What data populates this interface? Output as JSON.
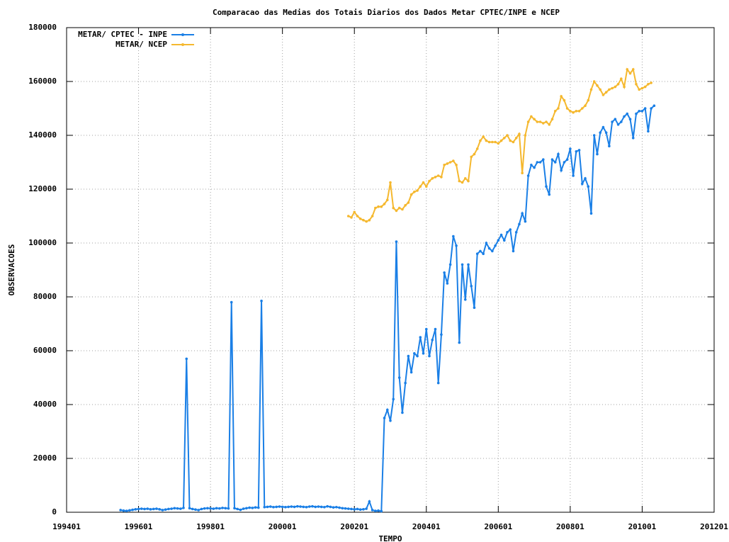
{
  "chart_data": {
    "type": "line",
    "title": "Comparacao das Medias dos Totais Diarios dos Dados Metar  CPTEC/INPE e NCEP",
    "xlabel": "TEMPO",
    "ylabel": "OBSERVACOES",
    "xlim": [
      "199401",
      "201201"
    ],
    "xticks": [
      "199401",
      "199601",
      "199801",
      "200001",
      "200201",
      "200401",
      "200601",
      "200801",
      "201001",
      "201201"
    ],
    "ylim": [
      0,
      180000
    ],
    "yticks": [
      0,
      20000,
      40000,
      60000,
      80000,
      100000,
      120000,
      140000,
      160000,
      180000
    ],
    "grid": true,
    "legend": "upper left",
    "x": [
      "199507",
      "199508",
      "199509",
      "199510",
      "199511",
      "199512",
      "199601",
      "199602",
      "199603",
      "199604",
      "199605",
      "199606",
      "199607",
      "199608",
      "199609",
      "199610",
      "199611",
      "199612",
      "199701",
      "199702",
      "199703",
      "199704",
      "199705",
      "199706",
      "199707",
      "199708",
      "199709",
      "199710",
      "199711",
      "199712",
      "199801",
      "199802",
      "199803",
      "199804",
      "199805",
      "199806",
      "199807",
      "199808",
      "199809",
      "199810",
      "199811",
      "199812",
      "199901",
      "199902",
      "199903",
      "199904",
      "199905",
      "199906",
      "199907",
      "199908",
      "199909",
      "199910",
      "199911",
      "199912",
      "200001",
      "200002",
      "200003",
      "200004",
      "200005",
      "200006",
      "200007",
      "200008",
      "200009",
      "200010",
      "200011",
      "200012",
      "200101",
      "200102",
      "200103",
      "200104",
      "200105",
      "200106",
      "200107",
      "200108",
      "200109",
      "200110",
      "200111",
      "200112",
      "200201",
      "200202",
      "200203",
      "200204",
      "200205",
      "200206",
      "200207",
      "200208",
      "200209",
      "200210",
      "200211",
      "200212",
      "200301",
      "200302",
      "200303",
      "200304",
      "200305",
      "200306",
      "200307",
      "200308",
      "200309",
      "200310",
      "200311",
      "200312",
      "200401",
      "200402",
      "200403",
      "200404",
      "200405",
      "200406",
      "200407",
      "200408",
      "200409",
      "200410",
      "200411",
      "200412",
      "200501",
      "200502",
      "200503",
      "200504",
      "200505",
      "200506",
      "200507",
      "200508",
      "200509",
      "200510",
      "200511",
      "200512",
      "200601",
      "200602",
      "200603",
      "200604",
      "200605",
      "200606",
      "200607",
      "200608",
      "200609",
      "200610",
      "200611",
      "200612",
      "200701",
      "200702",
      "200703",
      "200704",
      "200705",
      "200706",
      "200707",
      "200708",
      "200709",
      "200710",
      "200711",
      "200712",
      "200801",
      "200802",
      "200803",
      "200804",
      "200805",
      "200806",
      "200807",
      "200808",
      "200809",
      "200810",
      "200811",
      "200812",
      "200901",
      "200902",
      "200903",
      "200904",
      "200905",
      "200906",
      "200907",
      "200908",
      "200909",
      "200910",
      "200911",
      "200912",
      "201001",
      "201002",
      "201003",
      "201004",
      "201005"
    ],
    "series": [
      {
        "name": "METAR/ CPTEC - INPE",
        "color": "#1a7fe6",
        "values": [
          800,
          600,
          500,
          700,
          900,
          1100,
          1200,
          1300,
          1200,
          1300,
          1100,
          1200,
          1300,
          1100,
          800,
          1000,
          1200,
          1300,
          1500,
          1400,
          1300,
          1600,
          57000,
          1500,
          1200,
          1000,
          800,
          1200,
          1400,
          1500,
          1400,
          1300,
          1500,
          1400,
          1600,
          1500,
          1400,
          78000,
          1500,
          1200,
          900,
          1300,
          1500,
          1700,
          1600,
          1800,
          1700,
          78500,
          1900,
          2000,
          2100,
          1900,
          2000,
          2100,
          2000,
          1900,
          2000,
          2100,
          2000,
          2200,
          2100,
          2000,
          1900,
          2100,
          2200,
          2000,
          2100,
          2000,
          1900,
          2200,
          2000,
          1800,
          1900,
          1700,
          1500,
          1400,
          1300,
          1200,
          1100,
          1200,
          1000,
          1100,
          1300,
          4000,
          800,
          500,
          600,
          400,
          35000,
          38000,
          34000,
          42000,
          100500,
          50000,
          37000,
          48000,
          58000,
          52000,
          59000,
          58000,
          65000,
          59000,
          68000,
          58000,
          64000,
          68000,
          48000,
          66000,
          89000,
          85000,
          92000,
          102500,
          99000,
          63000,
          92000,
          79000,
          92000,
          84000,
          76000,
          96000,
          97000,
          96000,
          100000,
          98000,
          97000,
          99000,
          101000,
          103000,
          101000,
          104000,
          105000,
          97000,
          104000,
          107000,
          111000,
          108000,
          125000,
          129000,
          128000,
          130000,
          130000,
          131000,
          121000,
          118000,
          131000,
          130000,
          133000,
          127000,
          130000,
          131000,
          135000,
          125000,
          134000,
          134500,
          122000,
          124000,
          121000,
          111000,
          140000,
          133000,
          141000,
          143000,
          141000,
          136000,
          145000,
          146000,
          144000,
          145000,
          147000,
          148000,
          146000,
          139000,
          148000,
          149000,
          149000,
          150000,
          141500,
          150000,
          151000
        ]
      },
      {
        "name": "METAR/ NCEP",
        "color": "#f5b82e",
        "values": [
          null,
          null,
          null,
          null,
          null,
          null,
          null,
          null,
          null,
          null,
          null,
          null,
          null,
          null,
          null,
          null,
          null,
          null,
          null,
          null,
          null,
          null,
          null,
          null,
          null,
          null,
          null,
          null,
          null,
          null,
          null,
          null,
          null,
          null,
          null,
          null,
          null,
          null,
          null,
          null,
          null,
          null,
          null,
          null,
          null,
          null,
          null,
          null,
          null,
          null,
          null,
          null,
          null,
          null,
          null,
          null,
          null,
          null,
          null,
          null,
          null,
          null,
          null,
          null,
          null,
          null,
          null,
          null,
          null,
          null,
          null,
          null,
          null,
          null,
          null,
          null,
          110000,
          109500,
          111500,
          110000,
          109000,
          108500,
          108000,
          108500,
          110000,
          113000,
          113500,
          113500,
          114500,
          116000,
          122500,
          113000,
          112000,
          113000,
          112500,
          114000,
          115000,
          118000,
          119000,
          119500,
          121000,
          122500,
          121000,
          123000,
          124000,
          124500,
          125000,
          124500,
          129000,
          129500,
          130000,
          130500,
          129000,
          123000,
          122500,
          124000,
          123000,
          132000,
          133000,
          135000,
          138000,
          139500,
          138000,
          137500,
          137500,
          137500,
          137000,
          138000,
          139000,
          140000,
          138000,
          137500,
          139000,
          140500,
          126000,
          140000,
          145000,
          147000,
          146000,
          145000,
          145000,
          144500,
          145000,
          144000,
          146000,
          149000,
          150000,
          154500,
          153000,
          150000,
          149000,
          148500,
          149000,
          149000,
          150000,
          151000,
          153000,
          157000,
          160000,
          158500,
          157000,
          155000,
          156000,
          157000,
          157500,
          158000,
          159000,
          161000,
          158000,
          164500,
          163000,
          164500,
          159000,
          157000,
          157500,
          158000,
          159000,
          159500,
          null
        ]
      }
    ]
  }
}
